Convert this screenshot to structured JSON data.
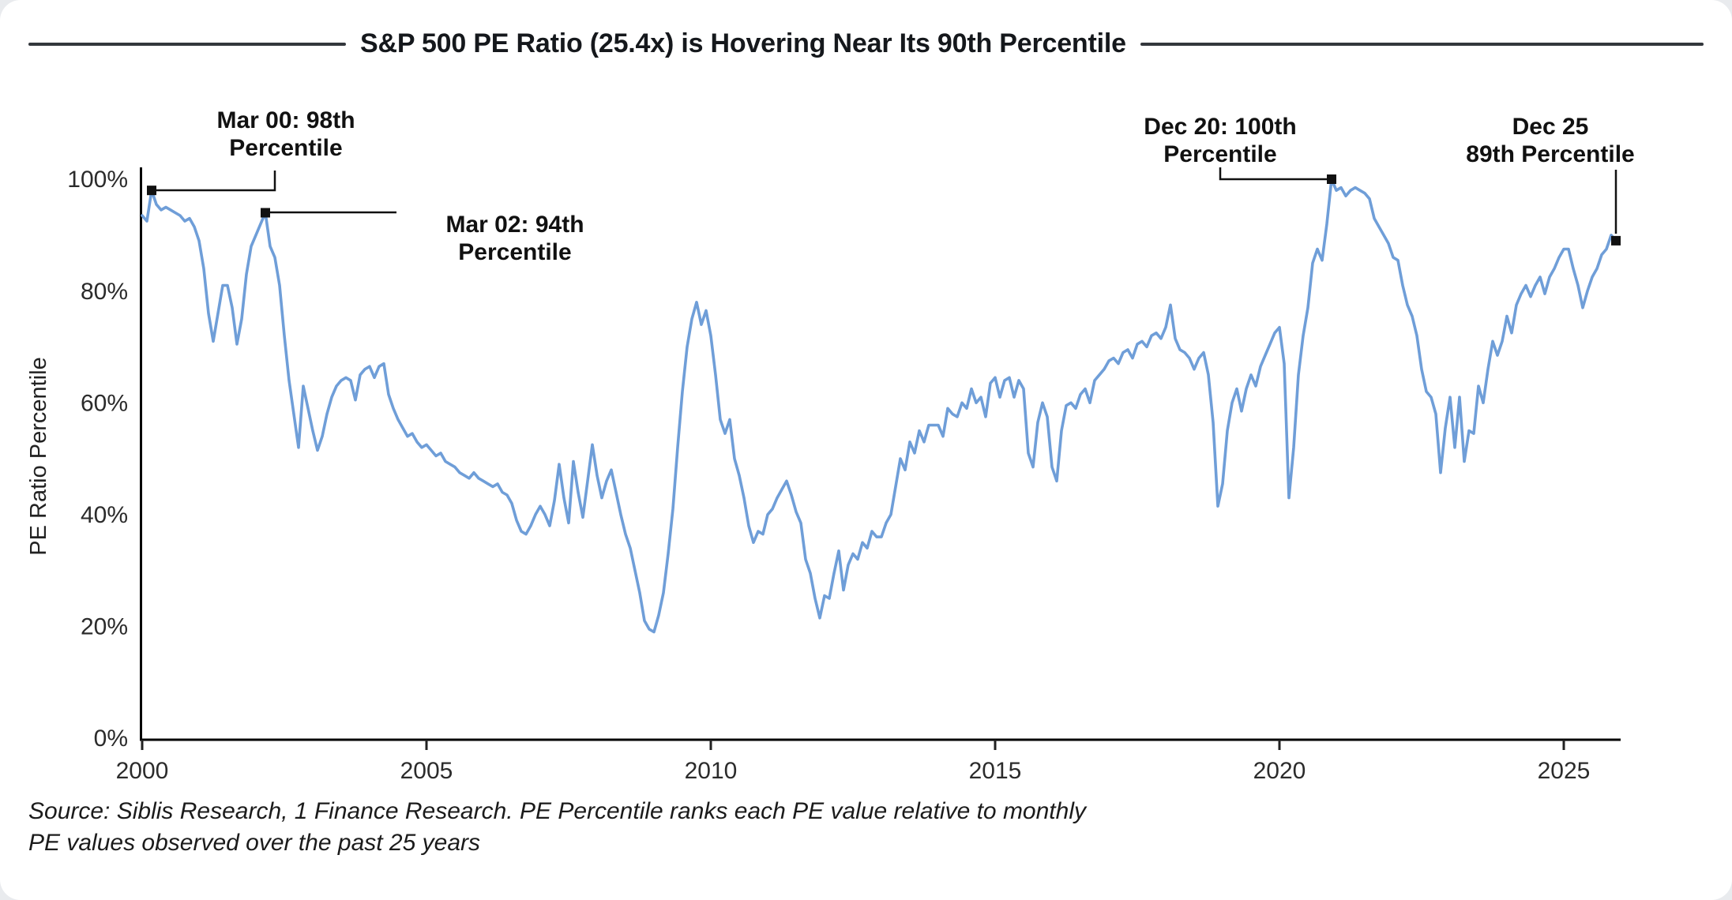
{
  "page": {
    "title": "S&P 500 PE Ratio (25.4x) is Hovering Near Its 90th Percentile"
  },
  "source_note": {
    "line1": "Source: Siblis Research, 1 Finance Research. PE Percentile ranks each PE value relative to monthly",
    "line2": "PE values observed over the past 25 years"
  },
  "chart_data": {
    "type": "line",
    "title": "S&P 500 PE Ratio (25.4x) is Hovering Near Its 90th Percentile",
    "xlabel": "",
    "ylabel": "PE Ratio Percentile",
    "x_ticks": [
      2000,
      2005,
      2010,
      2015,
      2020,
      2025
    ],
    "y_ticks": [
      {
        "value": 0,
        "label": "0%"
      },
      {
        "value": 20,
        "label": "20%"
      },
      {
        "value": 40,
        "label": "40%"
      },
      {
        "value": 60,
        "label": "60%"
      },
      {
        "value": 80,
        "label": "80%"
      },
      {
        "value": 100,
        "label": "100%"
      }
    ],
    "xlim": [
      2000,
      2026.1
    ],
    "ylim": [
      0,
      100
    ],
    "grid": false,
    "legend": "none",
    "line_color": "#6f9ed8",
    "annotation_color": "#111111",
    "series": {
      "name": "S&P 500 PE ratio percentile",
      "start_year": 2000,
      "frequency": "monthly",
      "values": [
        93.5,
        92.5,
        98,
        95.5,
        94.5,
        95,
        94.5,
        94,
        93.5,
        92.5,
        93,
        91.5,
        89,
        84,
        76,
        71,
        76,
        81,
        81,
        77,
        70.5,
        75,
        83,
        88,
        90,
        92,
        94,
        88,
        86,
        81,
        72,
        64,
        58,
        52,
        63,
        59,
        55,
        51.5,
        54,
        58,
        61,
        63,
        64,
        64.5,
        64,
        60.5,
        65,
        66,
        66.5,
        64.5,
        66.5,
        67,
        61.5,
        59,
        57,
        55.5,
        54,
        54.5,
        53,
        52,
        52.5,
        51.5,
        50.5,
        51,
        49.5,
        49,
        48.5,
        47.5,
        47,
        46.5,
        47.5,
        46.5,
        46,
        45.5,
        45,
        45.5,
        44,
        43.5,
        42,
        39,
        37,
        36.5,
        38,
        40,
        41.5,
        40,
        38,
        42.5,
        49,
        43,
        38.5,
        49.5,
        44,
        39.5,
        46,
        52.5,
        47,
        43,
        46,
        48,
        44,
        40,
        36.5,
        34,
        30,
        26,
        21,
        19.5,
        19,
        22,
        26,
        33,
        41,
        52,
        62,
        70,
        75,
        78,
        74,
        76.5,
        72,
        65,
        57,
        54.5,
        57,
        50,
        47,
        43,
        38,
        35,
        37,
        36.5,
        40,
        41,
        43,
        44.5,
        46,
        43.5,
        40.5,
        38.5,
        32,
        29.5,
        25,
        21.5,
        25.5,
        25,
        29.5,
        33.5,
        26.5,
        31,
        33,
        32,
        35,
        34,
        37,
        36,
        36,
        38.5,
        40,
        45,
        50,
        48,
        53,
        51,
        55,
        53,
        56,
        56,
        56,
        54,
        59,
        58,
        57.5,
        60,
        59,
        62.5,
        60,
        61,
        57.5,
        63.5,
        64.5,
        61,
        64,
        64.5,
        61,
        64,
        62.5,
        51,
        48.5,
        56.5,
        60,
        57.5,
        48.5,
        46,
        55,
        59.5,
        60,
        59,
        61.5,
        62.5,
        60,
        64,
        65,
        66,
        67.5,
        68,
        67,
        69,
        69.5,
        68,
        70.5,
        71,
        70,
        72,
        72.5,
        71.5,
        73.5,
        77.5,
        71.5,
        69.5,
        69,
        68,
        66,
        68,
        69,
        65,
        56.5,
        41.5,
        45.5,
        55,
        60,
        62.5,
        58.5,
        62.5,
        65,
        63,
        66.5,
        68.5,
        70.5,
        72.5,
        73.5,
        67,
        43,
        52,
        65,
        72,
        77,
        85,
        87.5,
        85.5,
        92,
        100,
        98,
        98.5,
        97,
        98,
        98.5,
        98,
        97.5,
        96.5,
        93,
        91.5,
        90,
        88.5,
        86,
        85.5,
        81,
        77.5,
        75.5,
        72,
        66,
        62,
        61,
        58,
        47.5,
        55.5,
        61,
        52,
        61,
        49.5,
        55,
        54.5,
        63,
        60,
        66,
        71,
        68.5,
        71,
        75.5,
        72.5,
        77.5,
        79.5,
        81,
        79,
        81,
        82.5,
        79.5,
        82.5,
        84,
        86,
        87.5,
        87.5,
        84,
        81,
        77,
        80,
        82.5,
        84,
        86.5,
        87.5,
        90,
        89
      ]
    },
    "annotations": [
      {
        "id": "mar00",
        "line1": "Mar 00: 98th",
        "line2": "Percentile",
        "anchor": "2000-03",
        "value": 98
      },
      {
        "id": "mar02",
        "line1": "Mar 02: 94th",
        "line2": "Percentile",
        "anchor": "2002-03",
        "value": 94
      },
      {
        "id": "dec20",
        "line1": "Dec 20: 100th",
        "line2": "Percentile",
        "anchor": "2020-12",
        "value": 100
      },
      {
        "id": "dec25",
        "line1": "Dec 25",
        "line2": "89th Percentile",
        "anchor": "2025-12",
        "value": 89
      }
    ]
  }
}
